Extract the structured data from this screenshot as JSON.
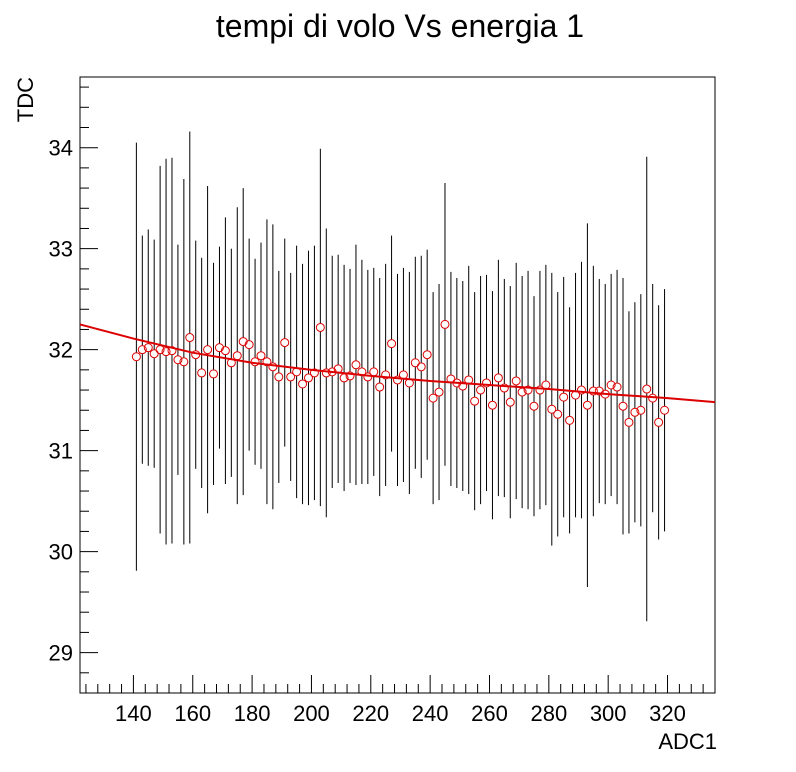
{
  "chart_data": {
    "type": "scatter",
    "title": "tempi di volo Vs energia 1",
    "xlabel": "ADC1",
    "ylabel": "TDC",
    "xlim": [
      122,
      336
    ],
    "ylim": [
      28.6,
      34.7
    ],
    "xticks": [
      140,
      160,
      180,
      200,
      220,
      240,
      260,
      280,
      300,
      320
    ],
    "yticks": [
      29,
      30,
      31,
      32,
      33,
      34
    ],
    "grid": false,
    "legend": "none",
    "colors": {
      "points": "#dd0000",
      "fit": "#dd0000",
      "error_bars": "#000000",
      "axes": "#000000"
    },
    "series": [
      {
        "marker": "open-circle",
        "x": [
          141,
          143,
          145,
          147,
          149,
          151,
          153,
          155,
          157,
          159,
          161,
          163,
          165,
          167,
          169,
          171,
          173,
          175,
          177,
          179,
          181,
          183,
          185,
          187,
          189,
          191,
          193,
          195,
          197,
          199,
          201,
          203,
          205,
          207,
          209,
          211,
          213,
          215,
          217,
          219,
          221,
          223,
          225,
          227,
          229,
          231,
          233,
          235,
          237,
          239,
          241,
          243,
          245,
          247,
          249,
          251,
          253,
          255,
          257,
          259,
          261,
          263,
          265,
          267,
          269,
          271,
          273,
          275,
          277,
          279,
          281,
          283,
          285,
          287,
          289,
          291,
          293,
          295,
          297,
          299,
          301,
          303,
          305,
          307,
          309,
          311,
          313,
          315,
          317,
          319
        ],
        "y": [
          31.93,
          32.0,
          32.02,
          31.96,
          32.0,
          31.98,
          31.99,
          31.9,
          31.88,
          32.12,
          31.95,
          31.77,
          32.0,
          31.76,
          32.02,
          31.99,
          31.87,
          31.94,
          32.08,
          32.05,
          31.88,
          31.94,
          31.88,
          31.83,
          31.73,
          32.07,
          31.73,
          31.78,
          31.66,
          31.72,
          31.77,
          32.22,
          31.77,
          31.78,
          31.81,
          31.72,
          31.74,
          31.85,
          31.78,
          31.73,
          31.78,
          31.63,
          31.75,
          32.06,
          31.7,
          31.75,
          31.67,
          31.87,
          31.83,
          31.95,
          31.52,
          31.58,
          32.25,
          31.71,
          31.67,
          31.64,
          31.7,
          31.49,
          31.6,
          31.67,
          31.45,
          31.72,
          31.62,
          31.48,
          31.69,
          31.58,
          31.6,
          31.44,
          31.6,
          31.65,
          31.41,
          31.36,
          31.53,
          31.3,
          31.55,
          31.6,
          31.45,
          31.59,
          31.59,
          31.56,
          31.65,
          31.63,
          31.44,
          31.28,
          31.38,
          31.4,
          31.61,
          31.52,
          31.28,
          31.4
        ],
        "err": [
          2.12,
          1.13,
          1.17,
          1.13,
          1.82,
          1.91,
          1.91,
          1.14,
          1.81,
          2.04,
          1.13,
          1.14,
          1.62,
          1.1,
          1.0,
          1.32,
          1.13,
          1.47,
          1.52,
          1.05,
          1.02,
          1.12,
          1.41,
          1.41,
          1.05,
          1.03,
          1.03,
          1.25,
          1.19,
          1.26,
          1.26,
          1.77,
          1.43,
          1.15,
          1.13,
          1.12,
          1.06,
          1.19,
          1.11,
          1.06,
          1.03,
          1.08,
          1.1,
          1.07,
          1.05,
          1.06,
          1.1,
          1.05,
          1.1,
          1.04,
          1.05,
          1.07,
          1.4,
          1.06,
          1.04,
          1.04,
          1.13,
          1.08,
          1.13,
          1.07,
          1.13,
          1.17,
          1.08,
          1.15,
          1.17,
          1.15,
          1.18,
          1.09,
          1.18,
          1.19,
          1.35,
          1.21,
          1.19,
          1.12,
          1.21,
          1.27,
          1.8,
          1.24,
          1.11,
          1.09,
          1.1,
          1.16,
          1.27,
          1.1,
          1.09,
          1.15,
          2.3,
          1.13,
          1.16,
          1.2
        ]
      }
    ],
    "fit_curve": {
      "x": [
        122,
        140,
        160,
        180,
        200,
        220,
        240,
        260,
        280,
        300,
        320,
        336
      ],
      "y": [
        32.25,
        32.11,
        31.97,
        31.87,
        31.8,
        31.74,
        31.69,
        31.65,
        31.61,
        31.56,
        31.52,
        31.48
      ]
    }
  }
}
